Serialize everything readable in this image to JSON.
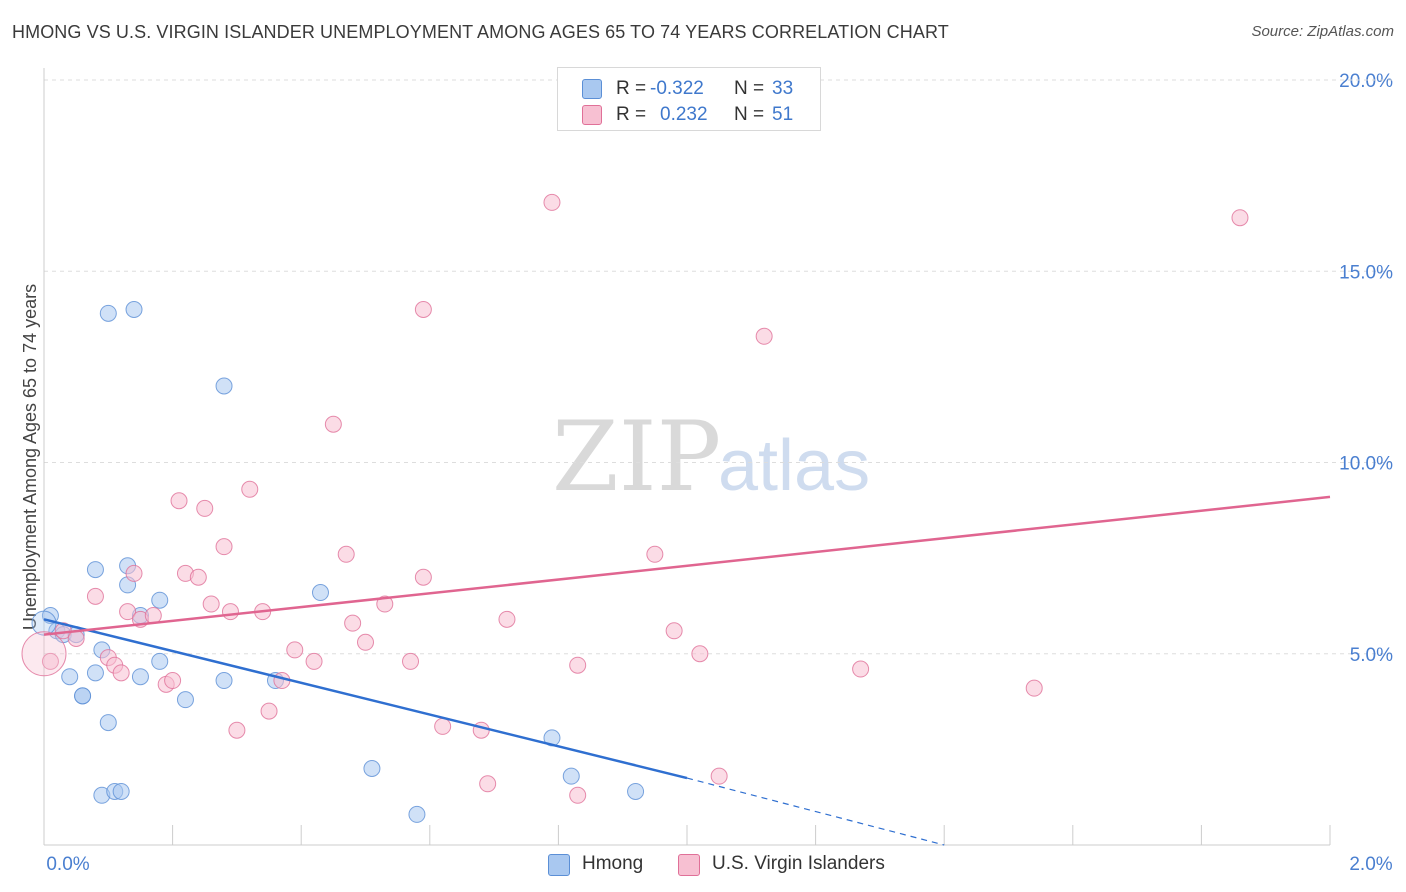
{
  "title": "HMONG VS U.S. VIRGIN ISLANDER UNEMPLOYMENT AMONG AGES 65 TO 74 YEARS CORRELATION CHART",
  "source": "Source: ZipAtlas.com",
  "watermark": {
    "zip": "ZIP",
    "atlas": "atlas"
  },
  "legend_top": [
    {
      "r_label": "R =",
      "r_value": "-0.322",
      "n_label": "N =",
      "n_value": "33",
      "color": "#a9c8f0",
      "border": "#5b8fd6"
    },
    {
      "r_label": "R =",
      "r_value": "0.232",
      "n_label": "N =",
      "n_value": "51",
      "color": "#f7c0d2",
      "border": "#e07098"
    }
  ],
  "legend_bottom": [
    {
      "label": "Hmong",
      "color": "#a9c8f0",
      "border": "#5b8fd6"
    },
    {
      "label": "U.S. Virgin Islanders",
      "color": "#f7c0d2",
      "border": "#e07098"
    }
  ],
  "chart_data": {
    "type": "scatter",
    "title": "HMONG VS U.S. VIRGIN ISLANDER UNEMPLOYMENT AMONG AGES 65 TO 74 YEARS CORRELATION CHART",
    "xlabel": "",
    "ylabel": "Unemployment Among Ages 65 to 74 years",
    "xlim": [
      0.0,
      2.0
    ],
    "ylim": [
      0.0,
      20.0
    ],
    "x_tick_labels": [
      "0.0%",
      "2.0%"
    ],
    "y_ticks": [
      5.0,
      10.0,
      15.0,
      20.0
    ],
    "y_tick_labels": [
      "5.0%",
      "10.0%",
      "15.0%",
      "20.0%"
    ],
    "grid": true,
    "series": [
      {
        "name": "Hmong",
        "color": "#a9c8f0",
        "stroke": "#5b8fd6",
        "line_color": "#2f6fd0",
        "trend": {
          "x0": 0.0,
          "y0": 5.9,
          "x1": 1.0,
          "y1": 1.75,
          "dash_to_x": 1.4,
          "dash_to_y": 0.0
        },
        "points": [
          [
            0.01,
            6.0
          ],
          [
            0.02,
            5.6
          ],
          [
            0.03,
            5.5
          ],
          [
            0.04,
            4.4
          ],
          [
            0.05,
            5.5
          ],
          [
            0.06,
            3.9
          ],
          [
            0.06,
            3.9
          ],
          [
            0.08,
            4.5
          ],
          [
            0.08,
            7.2
          ],
          [
            0.09,
            5.1
          ],
          [
            0.09,
            1.3
          ],
          [
            0.1,
            3.2
          ],
          [
            0.1,
            13.9
          ],
          [
            0.11,
            1.4
          ],
          [
            0.12,
            1.4
          ],
          [
            0.13,
            7.3
          ],
          [
            0.13,
            6.8
          ],
          [
            0.14,
            14.0
          ],
          [
            0.15,
            4.4
          ],
          [
            0.15,
            6.0
          ],
          [
            0.18,
            4.8
          ],
          [
            0.18,
            6.4
          ],
          [
            0.22,
            3.8
          ],
          [
            0.28,
            12.0
          ],
          [
            0.28,
            4.3
          ],
          [
            0.36,
            4.3
          ],
          [
            0.43,
            6.6
          ],
          [
            0.51,
            2.0
          ],
          [
            0.58,
            0.8
          ],
          [
            0.79,
            2.8
          ],
          [
            0.82,
            1.8
          ],
          [
            0.92,
            1.4
          ],
          [
            0.0,
            5.8
          ]
        ]
      },
      {
        "name": "U.S. Virgin Islanders",
        "color": "#f7c0d2",
        "stroke": "#e07098",
        "line_color": "#e06590",
        "trend": {
          "x0": 0.0,
          "y0": 5.5,
          "x1": 2.0,
          "y1": 9.1
        },
        "points": [
          [
            0.01,
            4.8
          ],
          [
            0.03,
            5.6
          ],
          [
            0.05,
            5.4
          ],
          [
            0.08,
            6.5
          ],
          [
            0.1,
            4.9
          ],
          [
            0.11,
            4.7
          ],
          [
            0.12,
            4.5
          ],
          [
            0.13,
            6.1
          ],
          [
            0.14,
            7.1
          ],
          [
            0.15,
            5.9
          ],
          [
            0.17,
            6.0
          ],
          [
            0.19,
            4.2
          ],
          [
            0.2,
            4.3
          ],
          [
            0.21,
            9.0
          ],
          [
            0.22,
            7.1
          ],
          [
            0.24,
            7.0
          ],
          [
            0.25,
            8.8
          ],
          [
            0.26,
            6.3
          ],
          [
            0.28,
            7.8
          ],
          [
            0.29,
            6.1
          ],
          [
            0.3,
            3.0
          ],
          [
            0.32,
            9.3
          ],
          [
            0.34,
            6.1
          ],
          [
            0.35,
            3.5
          ],
          [
            0.37,
            4.3
          ],
          [
            0.39,
            5.1
          ],
          [
            0.42,
            4.8
          ],
          [
            0.45,
            11.0
          ],
          [
            0.47,
            7.6
          ],
          [
            0.48,
            5.8
          ],
          [
            0.5,
            5.3
          ],
          [
            0.53,
            6.3
          ],
          [
            0.57,
            4.8
          ],
          [
            0.59,
            7.0
          ],
          [
            0.59,
            14.0
          ],
          [
            0.62,
            3.1
          ],
          [
            0.68,
            3.0
          ],
          [
            0.69,
            1.6
          ],
          [
            0.72,
            5.9
          ],
          [
            0.79,
            16.8
          ],
          [
            0.83,
            1.3
          ],
          [
            0.83,
            4.7
          ],
          [
            0.95,
            7.6
          ],
          [
            0.98,
            5.6
          ],
          [
            1.02,
            5.0
          ],
          [
            1.05,
            1.8
          ],
          [
            1.12,
            13.3
          ],
          [
            1.27,
            4.6
          ],
          [
            1.54,
            4.1
          ],
          [
            1.86,
            16.4
          ],
          [
            0.0,
            5.0
          ]
        ]
      }
    ]
  }
}
